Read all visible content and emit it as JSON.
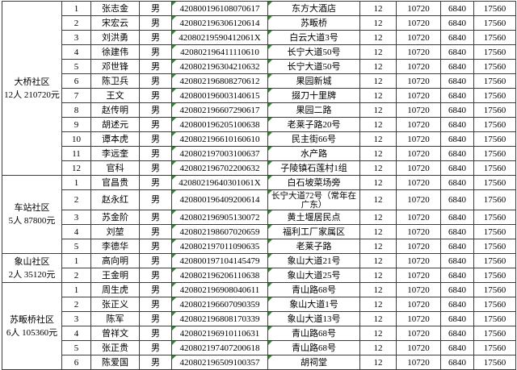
{
  "colors": {
    "grid_line": "#3d3d3d",
    "flag_triangle": "#2e8b2e",
    "background": "#ffffff",
    "text": "#000000"
  },
  "table": {
    "description": "roster-table",
    "sections": [
      {
        "label": "大桥社区",
        "count_amount": "12人 210720元",
        "rows": [
          {
            "seq": "1",
            "name": "张志金",
            "gender": "男",
            "id": "420800196108070617",
            "address": "东方大酒店",
            "months": "12",
            "a1": "10720",
            "a2": "6840",
            "total": "17560"
          },
          {
            "seq": "2",
            "name": "宋宏云",
            "gender": "男",
            "id": "420802196306120614",
            "address": "苏畈桥",
            "months": "12",
            "a1": "10720",
            "a2": "6840",
            "total": "17560"
          },
          {
            "seq": "3",
            "name": "刘洪勇",
            "gender": "男",
            "id": "42080219590412061X",
            "address": "白云大道3号",
            "months": "12",
            "a1": "10720",
            "a2": "6840",
            "total": "17560"
          },
          {
            "seq": "4",
            "name": "徐建伟",
            "gender": "男",
            "id": "420802196411110610",
            "address": "长宁大道50号",
            "months": "12",
            "a1": "10720",
            "a2": "6840",
            "total": "17560"
          },
          {
            "seq": "5",
            "name": "邓世锋",
            "gender": "男",
            "id": "420802196304210632",
            "address": "长宁大道50号",
            "months": "12",
            "a1": "10720",
            "a2": "6840",
            "total": "17560"
          },
          {
            "seq": "6",
            "name": "陈卫兵",
            "gender": "男",
            "id": "420802196808270612",
            "address": "果园新城",
            "months": "12",
            "a1": "10720",
            "a2": "6840",
            "total": "17560"
          },
          {
            "seq": "7",
            "name": "王文",
            "gender": "男",
            "id": "420800196003140615",
            "address": "掇刀十里牌",
            "months": "12",
            "a1": "10720",
            "a2": "6840",
            "total": "17560"
          },
          {
            "seq": "8",
            "name": "赵传明",
            "gender": "男",
            "id": "420802196607290617",
            "address": "果园二路",
            "months": "12",
            "a1": "10720",
            "a2": "6840",
            "total": "17560"
          },
          {
            "seq": "9",
            "name": "胡述元",
            "gender": "男",
            "id": "420800196205100638",
            "address": "老莱子路20号",
            "months": "12",
            "a1": "10720",
            "a2": "6840",
            "total": "17560"
          },
          {
            "seq": "10",
            "name": "谭本虎",
            "gender": "男",
            "id": "420802196610160610",
            "address": "民主街66号",
            "months": "12",
            "a1": "10720",
            "a2": "6840",
            "total": "17560"
          },
          {
            "seq": "11",
            "name": "李远奎",
            "gender": "男",
            "id": "420802197003100637",
            "address": "水产路",
            "months": "12",
            "a1": "10720",
            "a2": "6840",
            "total": "17560"
          },
          {
            "seq": "12",
            "name": "官科",
            "gender": "男",
            "id": "420802196702200632",
            "address": "子陵镇石莲村1组",
            "months": "12",
            "a1": "10720",
            "a2": "6840",
            "total": "17560"
          }
        ]
      },
      {
        "label": "车站社区",
        "count_amount": "5人 87800元",
        "rows": [
          {
            "seq": "1",
            "name": "官昌贵",
            "gender": "男",
            "id": "42080219640301061X",
            "address": "白石坡菜场旁",
            "months": "12",
            "a1": "10720",
            "a2": "6840",
            "total": "17560"
          },
          {
            "seq": "2",
            "name": "赵永红",
            "gender": "男",
            "id": "420800196409200614",
            "address": "长宁大道72号（常年在广东）",
            "wrap": true,
            "months": "12",
            "a1": "10720",
            "a2": "6840",
            "total": "17560"
          },
          {
            "seq": "3",
            "name": "苏金阶",
            "gender": "男",
            "id": "420802196905130072",
            "address": "黄土堰居民点",
            "months": "12",
            "a1": "10720",
            "a2": "6840",
            "total": "17560"
          },
          {
            "seq": "4",
            "name": "刘堃",
            "gender": "男",
            "id": "420802198607020659",
            "address": "福利工厂家属区",
            "months": "12",
            "a1": "10720",
            "a2": "6840",
            "total": "17560"
          },
          {
            "seq": "5",
            "name": "李德华",
            "gender": "男",
            "id": "420802197011090635",
            "address": "老莱子路",
            "months": "12",
            "a1": "10720",
            "a2": "6840",
            "total": "17560"
          }
        ]
      },
      {
        "label": "象山社区",
        "count_amount": "2人 35120元",
        "rows": [
          {
            "seq": "1",
            "name": "高向明",
            "gender": "男",
            "id": "420800197104145479",
            "address": "象山大道21号",
            "months": "12",
            "a1": "10720",
            "a2": "6840",
            "total": "17560"
          },
          {
            "seq": "2",
            "name": "王金明",
            "gender": "男",
            "id": "420802196206110638",
            "address": "象山大道25号",
            "months": "12",
            "a1": "10720",
            "a2": "6840",
            "total": "17560"
          }
        ]
      },
      {
        "label": "苏畈桥社区",
        "count_amount": "6人 105360元",
        "rows": [
          {
            "seq": "1",
            "name": "周生虎",
            "gender": "男",
            "id": "420802196908040611",
            "address": "青山路68号",
            "months": "12",
            "a1": "10720",
            "a2": "6840",
            "total": "17560"
          },
          {
            "seq": "2",
            "name": "张正义",
            "gender": "男",
            "id": "420802196607090359",
            "address": "象山大道1号",
            "months": "12",
            "a1": "10720",
            "a2": "6840",
            "total": "17560"
          },
          {
            "seq": "3",
            "name": "陈军",
            "gender": "男",
            "id": "420802196808170339",
            "address": "象山大道13号",
            "months": "12",
            "a1": "10720",
            "a2": "6840",
            "total": "17560"
          },
          {
            "seq": "4",
            "name": "曾祥文",
            "gender": "男",
            "id": "420802196910110631",
            "address": "青山路68号",
            "months": "12",
            "a1": "10720",
            "a2": "6840",
            "total": "17560"
          },
          {
            "seq": "5",
            "name": "张正贵",
            "gender": "男",
            "id": "420802197407200618",
            "address": "青山路68号",
            "months": "12",
            "a1": "10720",
            "a2": "6840",
            "total": "17560"
          },
          {
            "seq": "6",
            "name": "陈爱国",
            "gender": "男",
            "id": "420802196509100357",
            "address": "胡祠堂",
            "months": "12",
            "a1": "10720",
            "a2": "6840",
            "total": "17560"
          }
        ]
      }
    ]
  }
}
